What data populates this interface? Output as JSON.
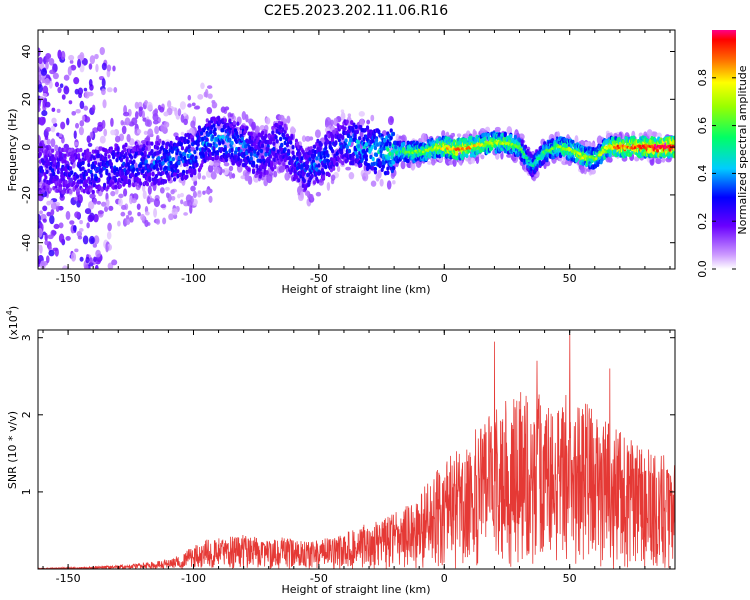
{
  "title": "C2E5.2023.202.11.06.R16",
  "colors": {
    "accent": "#e53935",
    "axis": "#000000",
    "background": "#ffffff"
  },
  "chart_data": [
    {
      "type": "heatmap",
      "xlabel": "Height of straight line (km)",
      "ylabel": "Frequency (Hz)",
      "xlim": [
        -162,
        92
      ],
      "ylim": [
        -51,
        49
      ],
      "xticks": [
        "-150",
        "-100",
        "-50",
        "0",
        "50"
      ],
      "xtick_values": [
        -150,
        -100,
        -50,
        0,
        50
      ],
      "yticks": [
        "-40",
        "-20",
        "0",
        "20",
        "40"
      ],
      "ytick_values": [
        -40,
        -20,
        0,
        20,
        40
      ],
      "colorbar": {
        "label": "Normalized spectral amplitude",
        "range": [
          0.0,
          1.0
        ],
        "ticks": [
          "0.0",
          "0.2",
          "0.4",
          "0.6",
          "0.8"
        ],
        "tick_values": [
          0.0,
          0.2,
          0.4,
          0.6,
          0.8
        ],
        "colormap": "rainbow"
      },
      "ridge": {
        "x": [
          -150,
          -140,
          -130,
          -120,
          -110,
          -100,
          -95,
          -90,
          -85,
          -80,
          -75,
          -70,
          -65,
          -60,
          -55,
          -50,
          -45,
          -40,
          -35,
          -30,
          -25,
          -20,
          -15,
          -10,
          -5,
          0,
          5,
          10,
          15,
          20,
          25,
          30,
          35,
          40,
          45,
          50,
          55,
          60,
          65,
          70,
          75,
          80,
          85,
          90
        ],
        "frequency": [
          -10,
          -10,
          -8,
          -7,
          -6,
          -3,
          2,
          4,
          2,
          0,
          -4,
          -2,
          3,
          -5,
          -10,
          -6,
          -2,
          2,
          1,
          -1,
          -2,
          -2,
          -2,
          -2,
          -1,
          0,
          -1,
          0,
          1,
          2,
          2,
          0,
          -8,
          -2,
          0,
          -1,
          -4,
          -5,
          0,
          0,
          0,
          0,
          0,
          0
        ],
        "amplitude": [
          0.25,
          0.3,
          0.3,
          0.3,
          0.35,
          0.35,
          0.35,
          0.4,
          0.35,
          0.35,
          0.3,
          0.3,
          0.3,
          0.3,
          0.3,
          0.35,
          0.3,
          0.3,
          0.4,
          0.4,
          0.45,
          0.5,
          0.55,
          0.55,
          0.6,
          0.7,
          0.8,
          0.75,
          0.65,
          0.6,
          0.6,
          0.5,
          0.4,
          0.5,
          0.55,
          0.6,
          0.65,
          0.55,
          0.7,
          0.8,
          0.8,
          0.85,
          0.9,
          0.9
        ]
      }
    },
    {
      "type": "line",
      "xlabel": "Height of straight line (km)",
      "ylabel": "SNR (10 * v/v)",
      "scale_label": "(x10",
      "scale_exponent": "4",
      "scale_close": ")",
      "xlim": [
        -162,
        92
      ],
      "ylim": [
        0,
        3.1
      ],
      "xticks": [
        "-150",
        "-100",
        "-50",
        "0",
        "50"
      ],
      "xtick_values": [
        -150,
        -100,
        -50,
        0,
        50
      ],
      "yticks": [
        "1",
        "2",
        "3"
      ],
      "ytick_values": [
        1,
        2,
        3
      ],
      "series": [
        {
          "color": "#e53935",
          "envelope": {
            "x": [
              -162,
              -150,
              -140,
              -130,
              -120,
              -110,
              -105,
              -100,
              -95,
              -90,
              -85,
              -80,
              -75,
              -70,
              -65,
              -60,
              -55,
              -50,
              -45,
              -40,
              -35,
              -30,
              -25,
              -20,
              -15,
              -10,
              -5,
              0,
              5,
              10,
              15,
              20,
              25,
              30,
              35,
              40,
              45,
              50,
              55,
              60,
              65,
              70,
              75,
              80,
              85,
              90,
              92
            ],
            "y": [
              0.01,
              0.02,
              0.03,
              0.05,
              0.08,
              0.12,
              0.2,
              0.3,
              0.38,
              0.4,
              0.42,
              0.45,
              0.42,
              0.4,
              0.42,
              0.38,
              0.35,
              0.38,
              0.42,
              0.45,
              0.55,
              0.6,
              0.65,
              0.75,
              0.85,
              1.0,
              1.2,
              1.4,
              1.6,
              1.75,
              1.9,
              2.1,
              2.2,
              2.3,
              2.3,
              2.3,
              2.25,
              2.3,
              2.2,
              2.05,
              1.95,
              1.8,
              1.7,
              1.6,
              1.5,
              1.45,
              1.4
            ]
          },
          "peaks": [
            {
              "x": 20,
              "y": 2.95
            },
            {
              "x": 50,
              "y": 3.05
            },
            {
              "x": 37,
              "y": 2.7
            },
            {
              "x": 66,
              "y": 2.6
            }
          ]
        }
      ]
    }
  ]
}
